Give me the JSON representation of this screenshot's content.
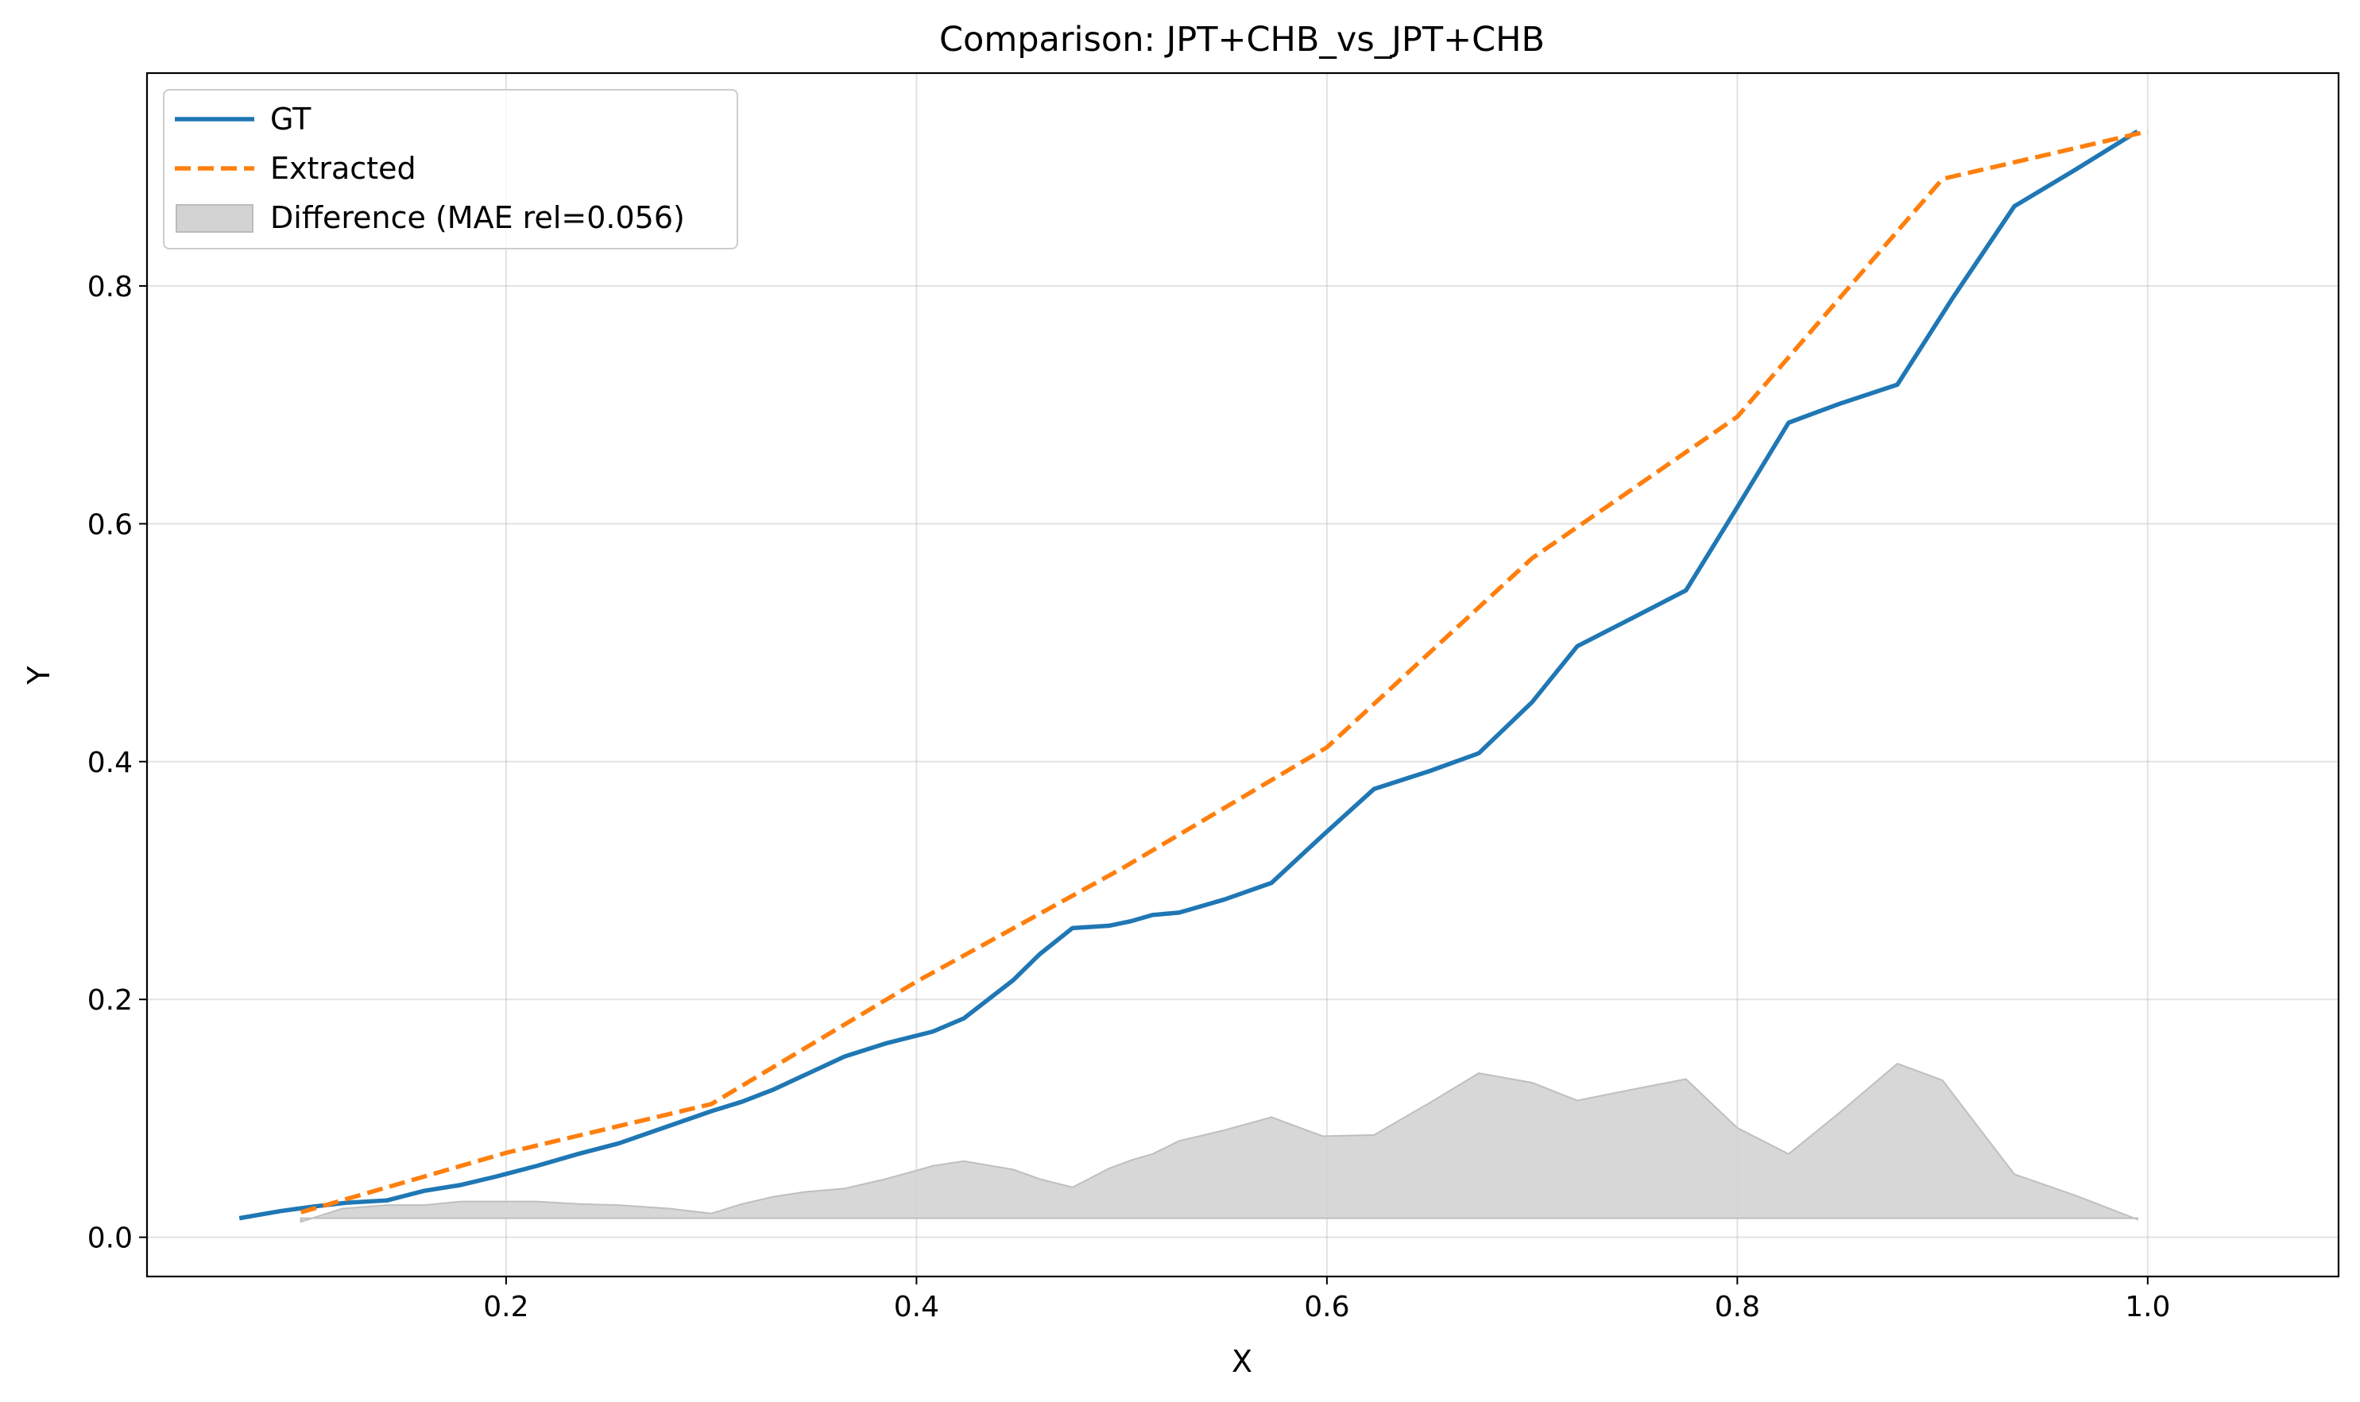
{
  "chart_data": {
    "type": "line",
    "title": "Comparison: JPT+CHB_vs_JPT+CHB",
    "xlabel": "X",
    "ylabel": "Y",
    "xlim": [
      0.025,
      1.093
    ],
    "ylim": [
      -0.033,
      0.979
    ],
    "xticks": [
      0.2,
      0.4,
      0.6,
      0.8,
      1.0
    ],
    "xtick_labels": [
      "0.2",
      "0.4",
      "0.6",
      "0.8",
      "1.0"
    ],
    "yticks": [
      0.0,
      0.2,
      0.4,
      0.6,
      0.8
    ],
    "ytick_labels": [
      "0.0",
      "0.2",
      "0.4",
      "0.6",
      "0.8"
    ],
    "grid": true,
    "legend_position": "top-left",
    "series": [
      {
        "name": "GT",
        "style": "solid",
        "color": "#1f77b4",
        "x": [
          0.07,
          0.09,
          0.107,
          0.122,
          0.142,
          0.16,
          0.178,
          0.195,
          0.215,
          0.235,
          0.255,
          0.28,
          0.3,
          0.315,
          0.33,
          0.345,
          0.365,
          0.385,
          0.408,
          0.423,
          0.447,
          0.46,
          0.476,
          0.494,
          0.505,
          0.515,
          0.528,
          0.55,
          0.573,
          0.598,
          0.623,
          0.65,
          0.674,
          0.7,
          0.722,
          0.748,
          0.775,
          0.8,
          0.825,
          0.85,
          0.878,
          0.905,
          0.935,
          0.965,
          0.995
        ],
        "y": [
          0.016,
          0.022,
          0.026,
          0.029,
          0.031,
          0.039,
          0.044,
          0.051,
          0.06,
          0.07,
          0.079,
          0.094,
          0.106,
          0.114,
          0.124,
          0.136,
          0.152,
          0.163,
          0.173,
          0.184,
          0.216,
          0.238,
          0.26,
          0.262,
          0.266,
          0.271,
          0.273,
          0.284,
          0.298,
          0.338,
          0.377,
          0.392,
          0.407,
          0.45,
          0.497,
          0.52,
          0.544,
          0.614,
          0.685,
          0.701,
          0.717,
          0.79,
          0.867,
          0.898,
          0.93
        ]
      },
      {
        "name": "Extracted",
        "style": "dashed",
        "color": "#ff7f0e",
        "x": [
          0.1,
          0.2,
          0.3,
          0.4,
          0.5,
          0.6,
          0.7,
          0.8,
          0.9,
          1.0
        ],
        "y": [
          0.021,
          0.071,
          0.112,
          0.215,
          0.31,
          0.412,
          0.571,
          0.69,
          0.89,
          0.93
        ]
      }
    ],
    "difference": {
      "name": "Difference (MAE rel=0.056)",
      "color": "#d3d3d3",
      "baseline": 0.016,
      "x": [
        0.1,
        0.12,
        0.142,
        0.16,
        0.178,
        0.195,
        0.215,
        0.235,
        0.255,
        0.28,
        0.3,
        0.315,
        0.33,
        0.345,
        0.365,
        0.385,
        0.408,
        0.423,
        0.447,
        0.46,
        0.476,
        0.494,
        0.505,
        0.515,
        0.528,
        0.55,
        0.573,
        0.598,
        0.623,
        0.65,
        0.674,
        0.7,
        0.722,
        0.748,
        0.775,
        0.8,
        0.825,
        0.85,
        0.878,
        0.9,
        0.935,
        0.965,
        0.995
      ],
      "y": [
        0.013,
        0.024,
        0.027,
        0.027,
        0.03,
        0.03,
        0.03,
        0.028,
        0.027,
        0.024,
        0.02,
        0.028,
        0.034,
        0.038,
        0.041,
        0.049,
        0.06,
        0.064,
        0.057,
        0.049,
        0.042,
        0.058,
        0.065,
        0.07,
        0.081,
        0.09,
        0.101,
        0.085,
        0.086,
        0.113,
        0.138,
        0.13,
        0.115,
        0.124,
        0.133,
        0.092,
        0.07,
        0.105,
        0.146,
        0.132,
        0.053,
        0.035,
        0.015
      ]
    }
  }
}
